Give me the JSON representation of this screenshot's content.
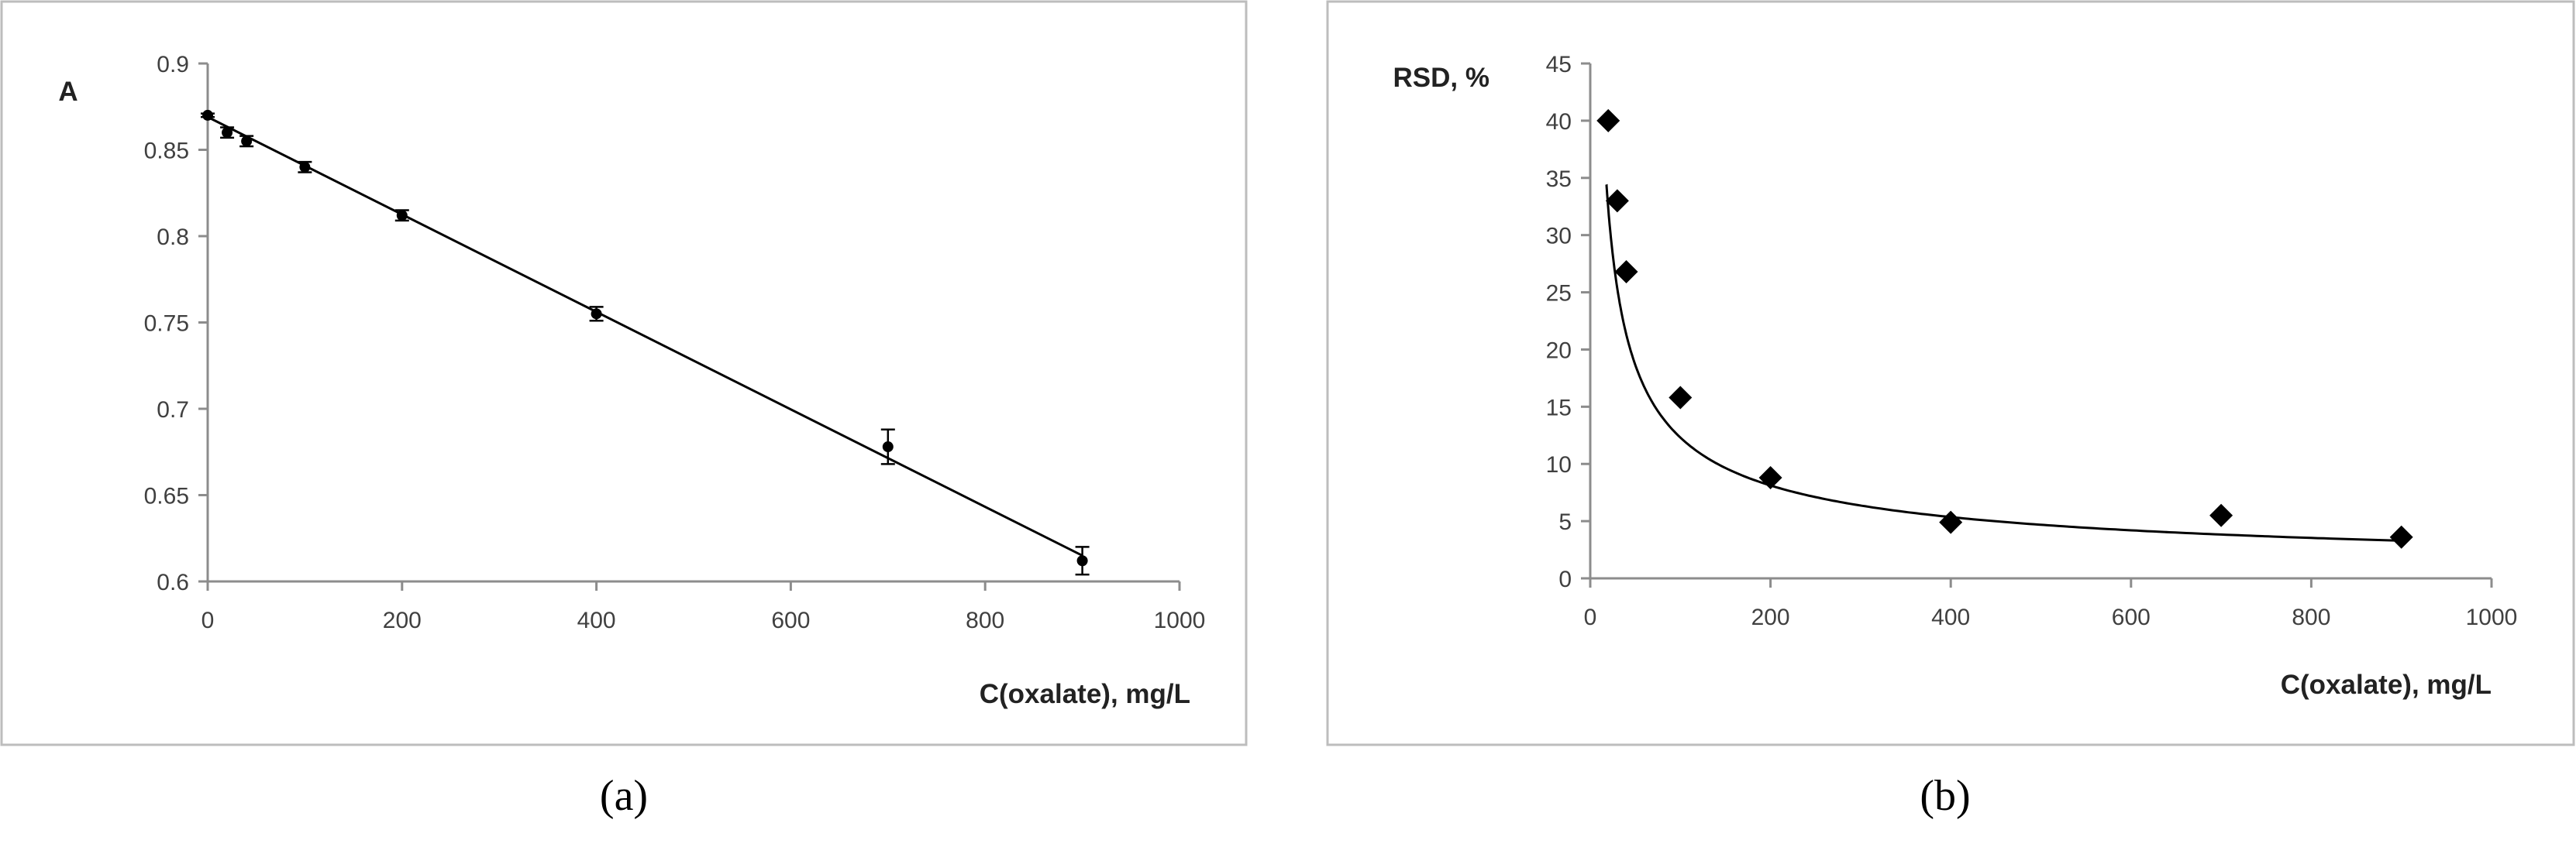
{
  "chart_data": [
    {
      "type": "scatter",
      "panel_label": "(a)",
      "ylabel": "A",
      "xlabel": "C(oxalate), mg/L",
      "xlim": [
        0,
        1000
      ],
      "ylim": [
        0.6,
        0.9
      ],
      "xticks": [
        0,
        200,
        400,
        600,
        800,
        1000
      ],
      "yticks": [
        0.6,
        0.65,
        0.7,
        0.75,
        0.8,
        0.85,
        0.9
      ],
      "ytick_labels": [
        "0.6",
        "0.65",
        "0.7",
        "0.75",
        "0.8",
        "0.85",
        "0.9"
      ],
      "grid": false,
      "marker": "dot",
      "series": [
        {
          "x": [
            0,
            20,
            40,
            100,
            200,
            400,
            700,
            900
          ],
          "y": [
            0.87,
            0.86,
            0.855,
            0.84,
            0.812,
            0.755,
            0.678,
            0.612
          ],
          "error": [
            0.001,
            0.003,
            0.003,
            0.003,
            0.003,
            0.004,
            0.01,
            0.008
          ]
        }
      ],
      "trendline": {
        "kind": "linear",
        "x": [
          0,
          900
        ],
        "y": [
          0.869,
          0.615
        ]
      }
    },
    {
      "type": "scatter",
      "panel_label": "(b)",
      "ylabel": "RSD, %",
      "xlabel": "C(oxalate), mg/L",
      "xlim": [
        0,
        1000
      ],
      "ylim": [
        0,
        45
      ],
      "xticks": [
        0,
        200,
        400,
        600,
        800,
        1000
      ],
      "yticks": [
        0,
        5,
        10,
        15,
        20,
        25,
        30,
        35,
        40,
        45
      ],
      "ytick_labels": [
        "0",
        "5",
        "10",
        "15",
        "20",
        "25",
        "30",
        "35",
        "40",
        "45"
      ],
      "grid": false,
      "marker": "diamond",
      "series": [
        {
          "x": [
            20,
            30,
            40,
            100,
            200,
            400,
            700,
            900
          ],
          "y": [
            40.0,
            33.0,
            26.8,
            15.8,
            8.8,
            4.9,
            5.5,
            3.6
          ]
        }
      ],
      "trendline": {
        "kind": "power",
        "coef": 195.0,
        "exponent": -0.6,
        "x_range": [
          18,
          900
        ]
      }
    }
  ]
}
